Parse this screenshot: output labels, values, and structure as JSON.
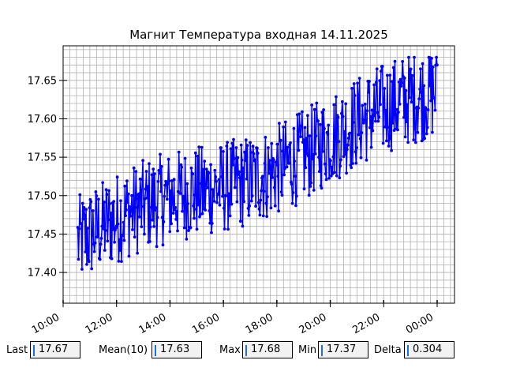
{
  "chart_data": {
    "type": "line",
    "title": "Магнит Температура входная 14.11.2025",
    "xlabel": "",
    "ylabel": "",
    "x_range_hours": [
      10.0,
      24.65
    ],
    "ylim": [
      17.36,
      17.695
    ],
    "x_tick_labels": [
      "10:00",
      "12:00",
      "14:00",
      "16:00",
      "18:00",
      "20:00",
      "22:00",
      "00:00"
    ],
    "x_tick_hours": [
      10,
      12,
      14,
      16,
      18,
      20,
      22,
      24
    ],
    "y_tick_labels": [
      "17.40",
      "17.45",
      "17.50",
      "17.55",
      "17.60",
      "17.65"
    ],
    "y_ticks": [
      17.4,
      17.45,
      17.5,
      17.55,
      17.6,
      17.65
    ],
    "grid": true,
    "series": [
      {
        "color": "#0000ff",
        "marker": "circle",
        "points_start_hour": 10.55,
        "points_end_hour": 24.0,
        "trend_start": 17.44,
        "trend_end": 17.63,
        "amplitude": 0.06,
        "min": 17.37,
        "max": 17.68,
        "last": 17.67
      }
    ]
  },
  "stats": {
    "last_label": "Last",
    "last_value": "17.67",
    "mean_label": "Mean(10)",
    "mean_value": "17.63",
    "max_label": "Max",
    "max_value": "17.68",
    "min_label": "Min",
    "min_value": "17.37",
    "delta_label": "Delta",
    "delta_value": "0.304"
  },
  "colors": {
    "line": "#0000ff",
    "grid": "#b0b0b0",
    "stat_cursor": "#1f6fd1"
  }
}
